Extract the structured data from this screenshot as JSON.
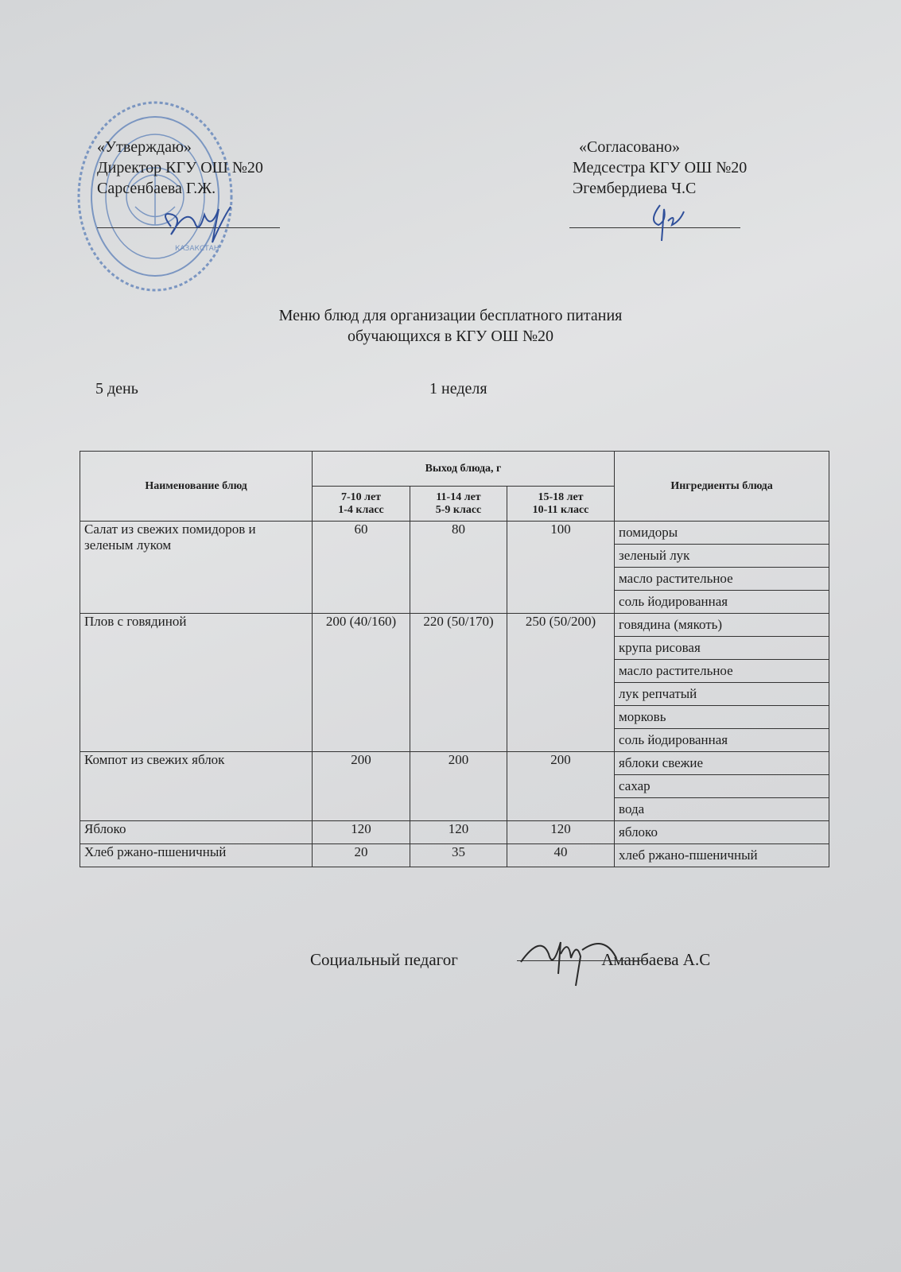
{
  "approval": {
    "label": "«Утверждаю»",
    "position": "Директор КГУ ОШ №20",
    "name": "Сарсенбаева Г.Ж."
  },
  "agreement": {
    "label": "«Согласовано»",
    "position": "Медсестра КГУ ОШ №20",
    "name": "Эгембердиева Ч.С"
  },
  "stamp": {
    "color": "#5b7fb8",
    "text": "КАЗАКСТАН"
  },
  "title": {
    "line1": "Меню блюд для организации бесплатного питания",
    "line2": "обучающихся в КГУ ОШ №20"
  },
  "day": "5 день",
  "week": "1 неделя",
  "table": {
    "headers": {
      "dish": "Наименование блюд",
      "yield": "Выход блюда, г",
      "ingredients": "Ингредиенты блюда",
      "groups": [
        {
          "age": "7-10 лет",
          "grade": "1-4 класс"
        },
        {
          "age": "11-14 лет",
          "grade": "5-9 класс"
        },
        {
          "age": "15-18 лет",
          "grade": "10-11 класс"
        }
      ]
    },
    "rows": [
      {
        "dish": "Салат из свежих помидоров и зеленым луком",
        "v1": "60",
        "v2": "80",
        "v3": "100",
        "ingredients": [
          "помидоры",
          "зеленый лук",
          "масло растительное",
          "соль йодированная"
        ]
      },
      {
        "dish": "Плов с говядиной",
        "v1": "200 (40/160)",
        "v2": "220 (50/170)",
        "v3": "250 (50/200)",
        "ingredients": [
          "говядина (мякоть)",
          "крупа рисовая",
          "масло растительное",
          "лук репчатый",
          "морковь",
          "соль йодированная"
        ]
      },
      {
        "dish": "Компот из свежих яблок",
        "v1": "200",
        "v2": "200",
        "v3": "200",
        "ingredients": [
          "яблоки свежие",
          "сахар",
          "вода"
        ]
      },
      {
        "dish": "Яблоко",
        "v1": "120",
        "v2": "120",
        "v3": "120",
        "ingredients": [
          "яблоко"
        ]
      },
      {
        "dish": "Хлеб ржано-пшеничный",
        "v1": "20",
        "v2": "35",
        "v3": "40",
        "ingredients": [
          "хлеб ржано-пшеничный"
        ]
      }
    ]
  },
  "footer": {
    "position": "Социальный педагог",
    "name": "Аманбаева А.С"
  }
}
